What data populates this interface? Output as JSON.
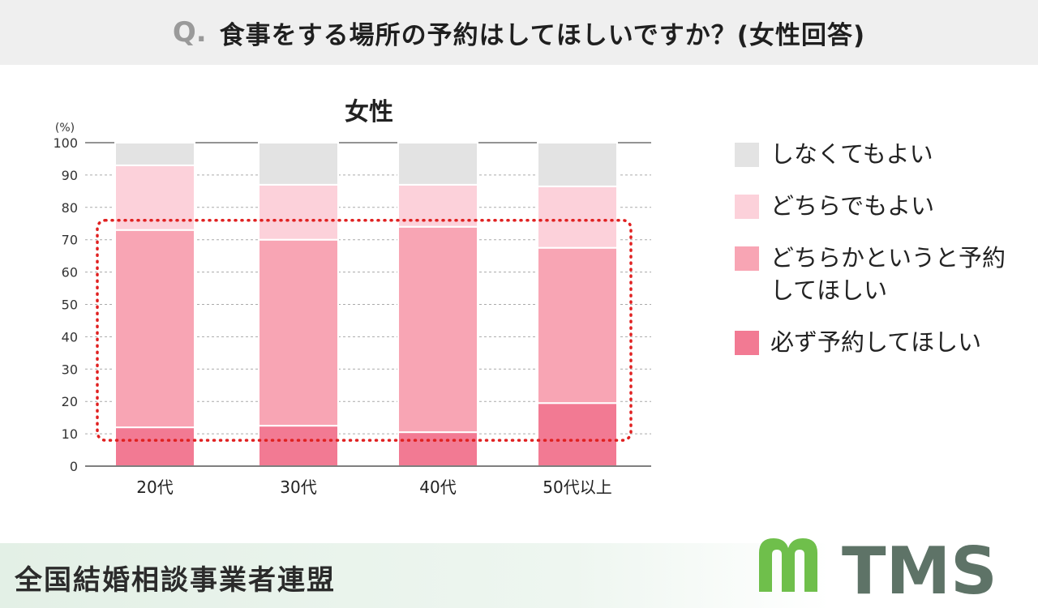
{
  "header": {
    "q_mark": "Q.",
    "question": "食事をする場所の予約はしてほしいですか？(女性回答)"
  },
  "chart_data": {
    "type": "bar",
    "stacked": true,
    "title": "女性",
    "ylabel": "(%)",
    "xlabel": "",
    "ylim": [
      0,
      100
    ],
    "yticks": [
      0,
      10,
      20,
      30,
      40,
      50,
      60,
      70,
      80,
      90,
      100
    ],
    "grid": true,
    "categories": [
      "20代",
      "30代",
      "40代",
      "50代以上"
    ],
    "series": [
      {
        "name": "必ず予約してほしい",
        "color": "#f27a93",
        "values": [
          12,
          12.5,
          10.5,
          19.5
        ]
      },
      {
        "name": "どちらかというと予約してほしい",
        "color": "#f8a5b4",
        "values": [
          61,
          57.5,
          63.5,
          48
        ]
      },
      {
        "name": "どちらでもよい",
        "color": "#fcd1da",
        "values": [
          20,
          17,
          13,
          19
        ]
      },
      {
        "name": "しなくてもよい",
        "color": "#e3e3e3",
        "values": [
          7,
          13,
          13,
          13.5
        ]
      }
    ],
    "highlight": {
      "style": "dotted",
      "color": "#e02020",
      "from": 8,
      "to": 76
    }
  },
  "legend": {
    "items": [
      {
        "label": "しなくてもよい",
        "color": "#e3e3e3"
      },
      {
        "label": "どちらでもよい",
        "color": "#fcd1da"
      },
      {
        "label": "どちらかというと予約してほしい",
        "color": "#f8a5b4"
      },
      {
        "label": "必ず予約してほしい",
        "color": "#f27a93"
      }
    ]
  },
  "footer": {
    "org": "全国結婚相談事業者連盟",
    "logo_text": "TMS",
    "logo_color": "#5e7367",
    "logo_accent": "#6fbf4b"
  }
}
